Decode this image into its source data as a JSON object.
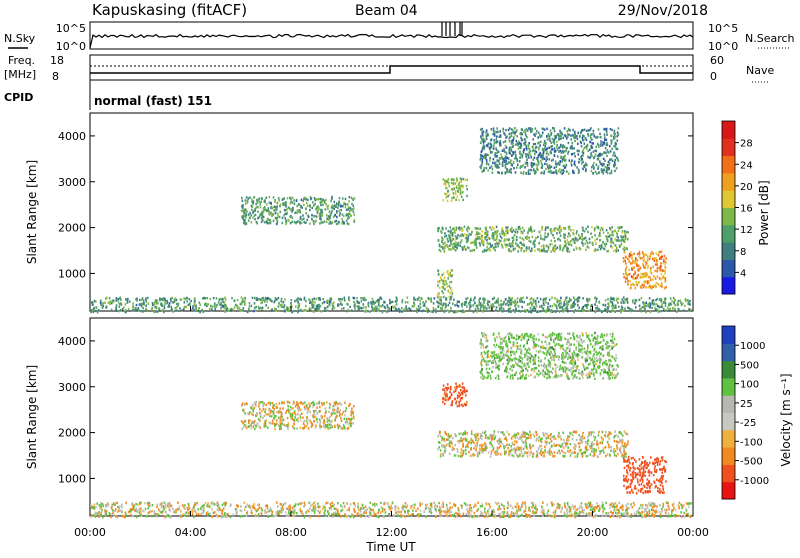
{
  "header": {
    "site": "Kapuskasing (fitACF)",
    "beam": "Beam 04",
    "date": "29/Nov/2018"
  },
  "panels": {
    "nsky": {
      "label": "N.Sky",
      "tick_high": "10^5",
      "tick_low": "10^0",
      "right_label": "N.Search",
      "right_tick_high": "10^5",
      "right_tick_low": "10^0"
    },
    "freq": {
      "label_line1": "Freq.",
      "label_line2": "[MHz]",
      "tick_high": "18",
      "tick_low": "8",
      "right_label": "Nave",
      "right_tick_high": "60",
      "right_tick_low": "0"
    },
    "cpid": {
      "label": "CPID",
      "value": "normal (fast) 151"
    }
  },
  "colors": {
    "power_scale": [
      "#1a1ae6",
      "#2b58a8",
      "#3f7f7f",
      "#4f9f6a",
      "#7fb84a",
      "#e0c830",
      "#f0a020",
      "#f07018",
      "#e03020",
      "#d81818"
    ],
    "velocity_scale": [
      "#e81414",
      "#f05020",
      "#f08a20",
      "#f0b040",
      "#c8c8c0",
      "#b8b8b0",
      "#60c040",
      "#3a8a3a",
      "#3060a8",
      "#2040c0"
    ]
  },
  "chart_data": [
    {
      "type": "heatmap",
      "title": "Power",
      "xlabel": "",
      "ylabel": "Slant Range [km]",
      "colorbar_label": "Power [dB]",
      "colorbar_ticks": [
        "4",
        "8",
        "12",
        "16",
        "20",
        "24",
        "28"
      ],
      "x_ticks": [
        "00:00",
        "04:00",
        "08:00",
        "12:00",
        "16:00",
        "20:00",
        "00:00"
      ],
      "y_ticks": [
        "1000",
        "2000",
        "3000",
        "4000"
      ],
      "xlim": [
        0,
        24
      ],
      "ylim": [
        180,
        4500
      ],
      "regions": [
        {
          "t0": 0.0,
          "t1": 23.9,
          "r0": 180,
          "r1": 500,
          "value": 10
        },
        {
          "t0": 6.0,
          "t1": 10.5,
          "r0": 2100,
          "r1": 2700,
          "value": 10
        },
        {
          "t0": 13.8,
          "t1": 21.4,
          "r0": 1500,
          "r1": 2050,
          "value": 12
        },
        {
          "t0": 14.0,
          "t1": 15.0,
          "r0": 2600,
          "r1": 3100,
          "value": 14
        },
        {
          "t0": 21.2,
          "t1": 22.9,
          "r0": 700,
          "r1": 1500,
          "value": 22
        },
        {
          "t0": 13.8,
          "t1": 14.4,
          "r0": 500,
          "r1": 1100,
          "value": 14
        },
        {
          "t0": 15.5,
          "t1": 21.0,
          "r0": 3200,
          "r1": 4200,
          "value": 8
        }
      ]
    },
    {
      "type": "heatmap",
      "title": "Velocity",
      "xlabel": "Time UT",
      "ylabel": "Slant Range [km]",
      "colorbar_label": "Velocity [m s⁻¹]",
      "colorbar_ticks": [
        "-1000",
        "-500",
        "-100",
        "-25",
        "25",
        "100",
        "500",
        "1000"
      ],
      "x_ticks": [
        "00:00",
        "04:00",
        "08:00",
        "12:00",
        "16:00",
        "20:00",
        "00:00"
      ],
      "y_ticks": [
        "1000",
        "2000",
        "3000",
        "4000"
      ],
      "xlim": [
        0,
        24
      ],
      "ylim": [
        180,
        4500
      ],
      "regions": [
        {
          "t0": 0.0,
          "t1": 23.9,
          "r0": 180,
          "r1": 500,
          "value": 0
        },
        {
          "t0": 6.0,
          "t1": 10.5,
          "r0": 2100,
          "r1": 2700,
          "value": 0
        },
        {
          "t0": 13.8,
          "t1": 21.4,
          "r0": 1500,
          "r1": 2050,
          "value": 0
        },
        {
          "t0": 14.0,
          "t1": 15.0,
          "r0": 2600,
          "r1": 3100,
          "value": -150
        },
        {
          "t0": 21.2,
          "t1": 22.9,
          "r0": 700,
          "r1": 1500,
          "value": -300
        },
        {
          "t0": 15.5,
          "t1": 21.0,
          "r0": 3200,
          "r1": 4200,
          "value": 50
        }
      ]
    }
  ]
}
